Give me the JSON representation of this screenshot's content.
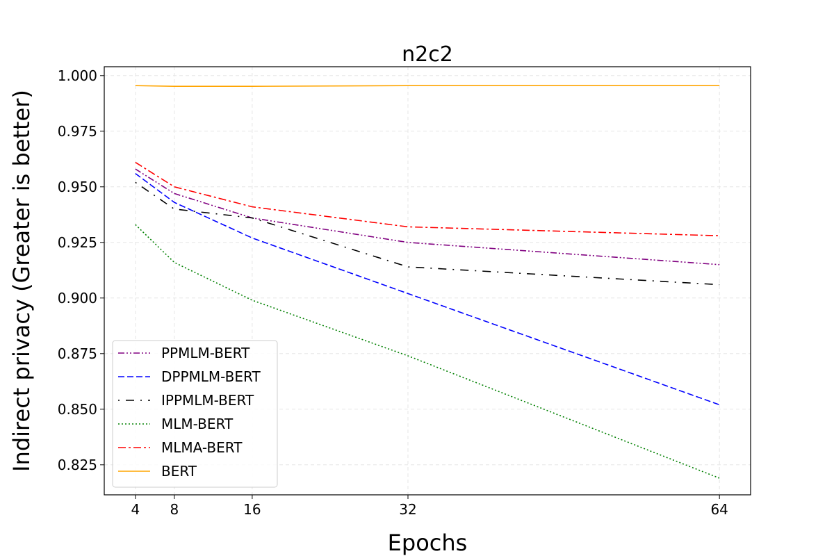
{
  "chart_data": {
    "type": "line",
    "title": "n2c2",
    "xlabel": "Epochs",
    "ylabel": "Indirect privacy (Greater is better)",
    "x": [
      4,
      8,
      16,
      32,
      64
    ],
    "xticks": [
      "4",
      "8",
      "16",
      "32",
      "64"
    ],
    "yticks": [
      "0.825",
      "0.850",
      "0.875",
      "0.900",
      "0.925",
      "0.950",
      "0.975",
      "1.000"
    ],
    "xlim": [
      0.8,
      67.2
    ],
    "ylim": [
      0.8115,
      1.004
    ],
    "grid": true,
    "legend_position": "lower-left",
    "series": [
      {
        "name": "PPMLM-BERT",
        "values": [
          0.958,
          0.947,
          0.936,
          0.925,
          0.915
        ],
        "color": "#800080",
        "dash": "dash-dot-dot"
      },
      {
        "name": "DPPMLM-BERT",
        "values": [
          0.956,
          0.943,
          0.927,
          0.902,
          0.852
        ],
        "color": "#0000ff",
        "dash": "dashed"
      },
      {
        "name": "IPPMLM-BERT",
        "values": [
          0.952,
          0.94,
          0.936,
          0.914,
          0.906
        ],
        "color": "#000000",
        "dash": "loose-dash-dot"
      },
      {
        "name": "MLM-BERT",
        "values": [
          0.933,
          0.916,
          0.899,
          0.874,
          0.819
        ],
        "color": "#008000",
        "dash": "dotted"
      },
      {
        "name": "MLMA-BERT",
        "values": [
          0.961,
          0.95,
          0.941,
          0.932,
          0.928
        ],
        "color": "#ff0000",
        "dash": "dash-dot"
      },
      {
        "name": "BERT",
        "values": [
          0.9955,
          0.9952,
          0.9952,
          0.9955,
          0.9955
        ],
        "color": "#ffa500",
        "dash": "solid"
      }
    ]
  }
}
